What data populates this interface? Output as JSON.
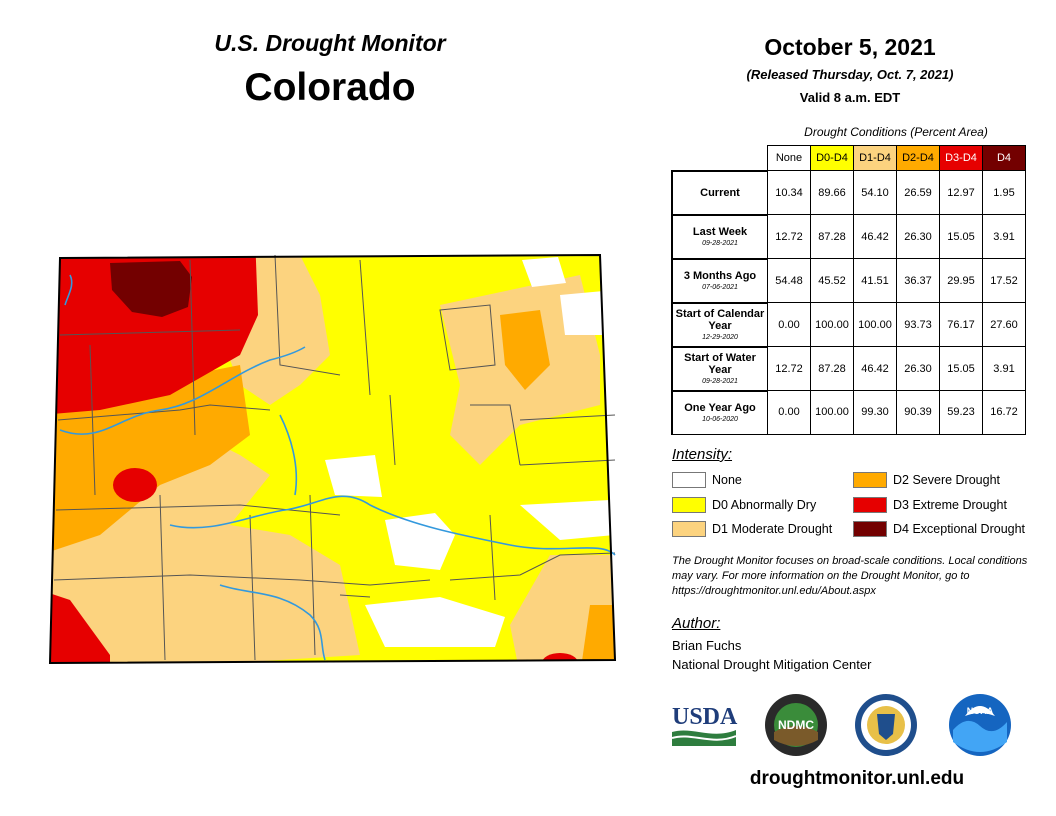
{
  "header": {
    "title": "U.S. Drought Monitor",
    "state": "Colorado",
    "date": "October 5, 2021",
    "released": "(Released Thursday, Oct. 7, 2021)",
    "valid": "Valid 8 a.m. EDT"
  },
  "colors": {
    "none": "#ffffff",
    "d0": "#ffff00",
    "d1": "#fcd37f",
    "d2": "#ffaa00",
    "d3": "#e60000",
    "d4": "#730000",
    "rivers": "#3399dd"
  },
  "table": {
    "caption": "Drought Conditions (Percent Area)",
    "columns": [
      "None",
      "D0-D4",
      "D1-D4",
      "D2-D4",
      "D3-D4",
      "D4"
    ],
    "rows": [
      {
        "label": "Current",
        "sub": "",
        "values": [
          "10.34",
          "89.66",
          "54.10",
          "26.59",
          "12.97",
          "1.95"
        ]
      },
      {
        "label": "Last Week",
        "sub": "09-28-2021",
        "values": [
          "12.72",
          "87.28",
          "46.42",
          "26.30",
          "15.05",
          "3.91"
        ]
      },
      {
        "label": "3 Months Ago",
        "sub": "07-06-2021",
        "values": [
          "54.48",
          "45.52",
          "41.51",
          "36.37",
          "29.95",
          "17.52"
        ]
      },
      {
        "label": "Start of Calendar Year",
        "sub": "12-29-2020",
        "values": [
          "0.00",
          "100.00",
          "100.00",
          "93.73",
          "76.17",
          "27.60"
        ]
      },
      {
        "label": "Start of Water Year",
        "sub": "09-28-2021",
        "values": [
          "12.72",
          "87.28",
          "46.42",
          "26.30",
          "15.05",
          "3.91"
        ]
      },
      {
        "label": "One Year Ago",
        "sub": "10-06-2020",
        "values": [
          "0.00",
          "100.00",
          "99.30",
          "90.39",
          "59.23",
          "16.72"
        ]
      }
    ]
  },
  "legend": {
    "title": "Intensity:",
    "items": [
      {
        "label": "None",
        "color": "#ffffff"
      },
      {
        "label": "D0 Abnormally Dry",
        "color": "#ffff00"
      },
      {
        "label": "D1 Moderate Drought",
        "color": "#fcd37f"
      },
      {
        "label": "D2 Severe Drought",
        "color": "#ffaa00"
      },
      {
        "label": "D3 Extreme Drought",
        "color": "#e60000"
      },
      {
        "label": "D4 Exceptional Drought",
        "color": "#730000"
      }
    ]
  },
  "note": "The Drought Monitor focuses on broad-scale conditions. Local conditions may vary. For more information on the Drought Monitor, go to https://droughtmonitor.unl.edu/About.aspx",
  "author": {
    "label": "Author:",
    "name": "Brian Fuchs",
    "org": "National Drought Mitigation Center"
  },
  "logos": {
    "usda": "USDA",
    "ndmc": "NDMC",
    "noaa": "NOAA"
  },
  "url": "droughtmonitor.unl.edu"
}
